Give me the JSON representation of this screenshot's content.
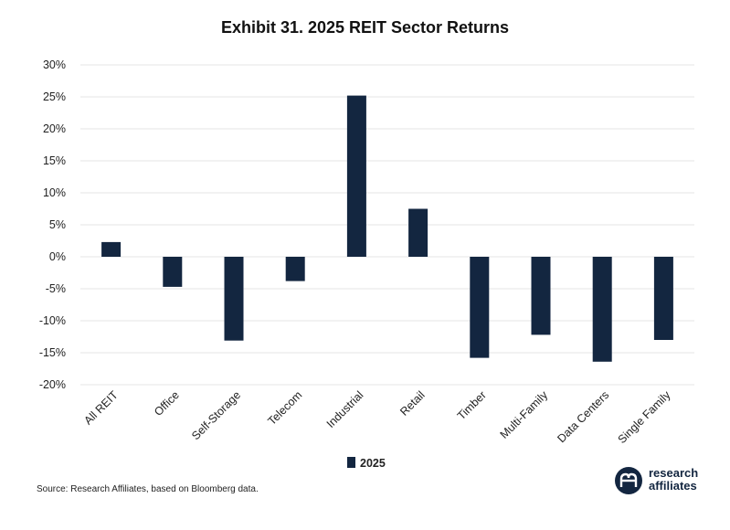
{
  "title": "Exhibit 31. 2025 REIT Sector Returns",
  "source": "Source: Research Affiliates, based on Bloomberg data.",
  "logo": {
    "line1": "research",
    "line2": "affiliates"
  },
  "colors": {
    "bar": "#132640",
    "grid": "#e6e6e6"
  },
  "chart_data": {
    "type": "bar",
    "title": "Exhibit 31. 2025 REIT Sector Returns",
    "categories": [
      "All REIT",
      "Office",
      "Self-Storage",
      "Telecom",
      "Industrial",
      "Retail",
      "Timber",
      "Multi-Family",
      "Data Centers",
      "Single Family"
    ],
    "series": [
      {
        "name": "2025",
        "values": [
          2.3,
          -4.7,
          -13.1,
          -3.8,
          25.2,
          7.5,
          -15.8,
          -12.2,
          -16.4,
          -13.0
        ]
      }
    ],
    "yticks": [
      "30%",
      "25%",
      "20%",
      "15%",
      "10%",
      "5%",
      "0%",
      "-5%",
      "-10%",
      "-15%",
      "-20%"
    ],
    "ylim": [
      -20,
      30
    ],
    "xlabel": "",
    "ylabel": "",
    "grid": true,
    "legend": "bottom-center"
  }
}
